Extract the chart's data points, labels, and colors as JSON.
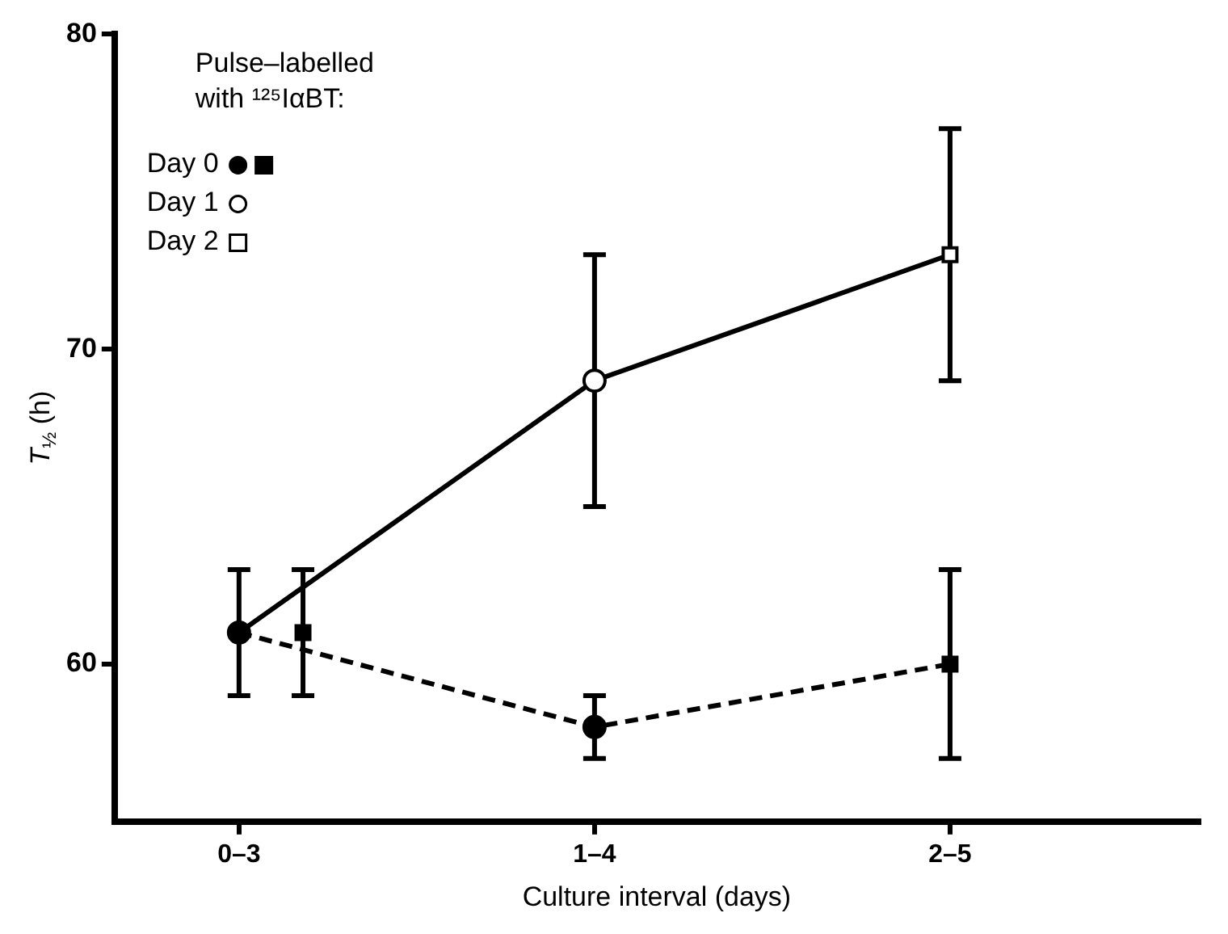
{
  "chart_data": {
    "type": "line",
    "xlabel": "Culture interval (days)",
    "ylabel": "T$_{½}$ (h)",
    "legend_title": "Pulse–labelled with ¹²⁵IαBT:",
    "legend": "top left",
    "grid": false,
    "categories": [
      "0–3",
      "1–4",
      "2–5"
    ],
    "ylim": [
      55,
      80
    ],
    "yticks": [
      60,
      70,
      80
    ],
    "series": [
      {
        "type": "scatter",
        "name": "Day 0",
        "color": "#000000",
        "marker": "circle",
        "x": [
          "0–3",
          "1–4"
        ],
        "values": [
          61,
          58
        ],
        "errors": [
          2,
          1
        ]
      },
      {
        "type": "scatter",
        "color": "#000000",
        "marker": "square",
        "x": [
          "0–3",
          "2–5"
        ],
        "values": [
          61,
          60
        ],
        "errors": [
          2,
          3
        ]
      },
      {
        "type": "scatter",
        "name": "Day 1",
        "color": "#ffffff",
        "marker": "circle",
        "x": [
          "1–4"
        ],
        "values": [
          69
        ],
        "errors": [
          4
        ]
      },
      {
        "type": "scatter",
        "name": "Day 2",
        "color": "#ffffff",
        "marker": "square",
        "x": [
          "2–5"
        ],
        "values": [
          73
        ],
        "errors": [
          4
        ]
      },
      {
        "color": "#000000",
        "marker": "none",
        "line_style": "solid",
        "values": [
          61,
          69,
          73
        ]
      },
      {
        "color": "#000000",
        "marker": "none",
        "line_style": "dashed",
        "values": [
          61,
          58,
          60
        ]
      }
    ]
  }
}
